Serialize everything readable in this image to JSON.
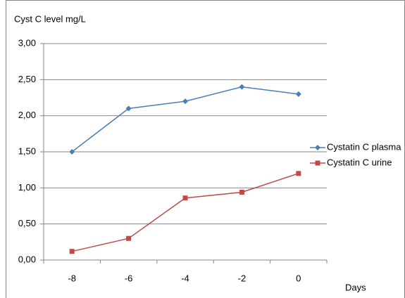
{
  "chart_data": {
    "type": "line",
    "y_axis_label": "Cyst C level mg/L",
    "x_axis_label": "Days",
    "categories": [
      "-8",
      "-6",
      "-4",
      "-2",
      "0"
    ],
    "series": [
      {
        "name": "Cystatin C plasma",
        "color": "#4a7ebb",
        "marker": "diamond",
        "values": [
          1.5,
          2.1,
          2.2,
          2.4,
          2.3
        ]
      },
      {
        "name": "Cystatin C urine",
        "color": "#be4b48",
        "marker": "square",
        "values": [
          0.12,
          0.3,
          0.86,
          0.94,
          1.2
        ]
      }
    ],
    "ylim": [
      0,
      3
    ],
    "yticks": [
      {
        "value": 0,
        "label": "0,00"
      },
      {
        "value": 0.5,
        "label": "0,50"
      },
      {
        "value": 1,
        "label": "1,00"
      },
      {
        "value": 1.5,
        "label": "1,50"
      },
      {
        "value": 2,
        "label": "2,00"
      },
      {
        "value": 2.5,
        "label": "2,50"
      },
      {
        "value": 3,
        "label": "3,00"
      }
    ],
    "grid": true,
    "legend": "right"
  }
}
